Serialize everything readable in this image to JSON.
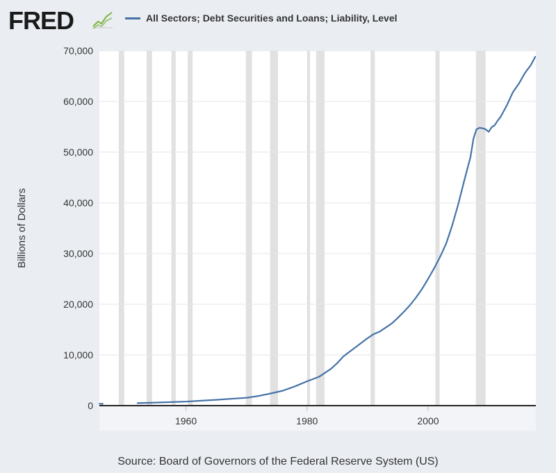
{
  "header": {
    "logo_text": "FRED",
    "legend_label": "All Sectors; Debt Securities and Loans; Liability, Level"
  },
  "footer": {
    "source_text": "Source: Board of Governors of the Federal Reserve System (US)"
  },
  "colors": {
    "series": "#4572a7",
    "plot_background": "#ffffff",
    "page_background": "#eaedf2",
    "recession_band": "#e1e1e1",
    "gridline": "#e6e6e6"
  },
  "icons": [
    "fred-chart-icon"
  ],
  "chart_data": {
    "type": "line",
    "title": "",
    "xlabel": "",
    "ylabel": "Billions of Dollars",
    "xlim": [
      1945.7,
      2017.8
    ],
    "ylim": [
      0,
      70000
    ],
    "yticks": [
      0,
      10000,
      20000,
      30000,
      40000,
      50000,
      60000,
      70000
    ],
    "ytick_labels": [
      "0",
      "10,000",
      "20,000",
      "30,000",
      "40,000",
      "50,000",
      "60,000",
      "70,000"
    ],
    "xticks": [
      1960,
      1980,
      2000
    ],
    "xtick_labels": [
      "1960",
      "1980",
      "2000"
    ],
    "grid": true,
    "legend_position": "top",
    "recessions": [
      [
        1948.9,
        1949.8
      ],
      [
        1953.5,
        1954.4
      ],
      [
        1957.6,
        1958.3
      ],
      [
        1960.3,
        1961.1
      ],
      [
        1969.9,
        1970.9
      ],
      [
        1973.9,
        1975.2
      ],
      [
        1980.0,
        1980.5
      ],
      [
        1981.5,
        1982.9
      ],
      [
        1990.5,
        1991.2
      ],
      [
        2001.2,
        2001.9
      ],
      [
        2007.9,
        2009.5
      ]
    ],
    "series": [
      {
        "name": "All Sectors; Debt Securities and Loans; Liability, Level",
        "segments": [
          {
            "x": [
              1945.75,
              1946.25
            ],
            "y": [
              350,
              360
            ]
          },
          {
            "x": [
              1952,
              1955,
              1960,
              1965,
              1970,
              1972,
              1974,
              1976,
              1978,
              1980,
              1982,
              1984,
              1985,
              1986,
              1987,
              1988,
              1989,
              1990,
              1991,
              1992,
              1993,
              1994,
              1995,
              1996,
              1997,
              1998,
              1999,
              2000,
              2001,
              2002,
              2003,
              2004,
              2005,
              2006,
              2007,
              2007.5,
              2008,
              2008.5,
              2009,
              2009.5,
              2010,
              2010.5,
              2011,
              2011.5,
              2012,
              2013,
              2014,
              2015,
              2016,
              2017,
              2017.7
            ],
            "y": [
              500,
              600,
              800,
              1150,
              1550,
              1900,
              2400,
              2950,
              3800,
              4800,
              5700,
              7300,
              8400,
              9700,
              10600,
              11500,
              12400,
              13300,
              14100,
              14600,
              15400,
              16200,
              17300,
              18500,
              19800,
              21300,
              23000,
              25000,
              27100,
              29400,
              32000,
              35600,
              39800,
              44500,
              49000,
              52700,
              54500,
              54800,
              54700,
              54500,
              54000,
              54900,
              55300,
              56200,
              57000,
              59200,
              61800,
              63500,
              65600,
              67200,
              68800
            ]
          }
        ]
      }
    ]
  }
}
